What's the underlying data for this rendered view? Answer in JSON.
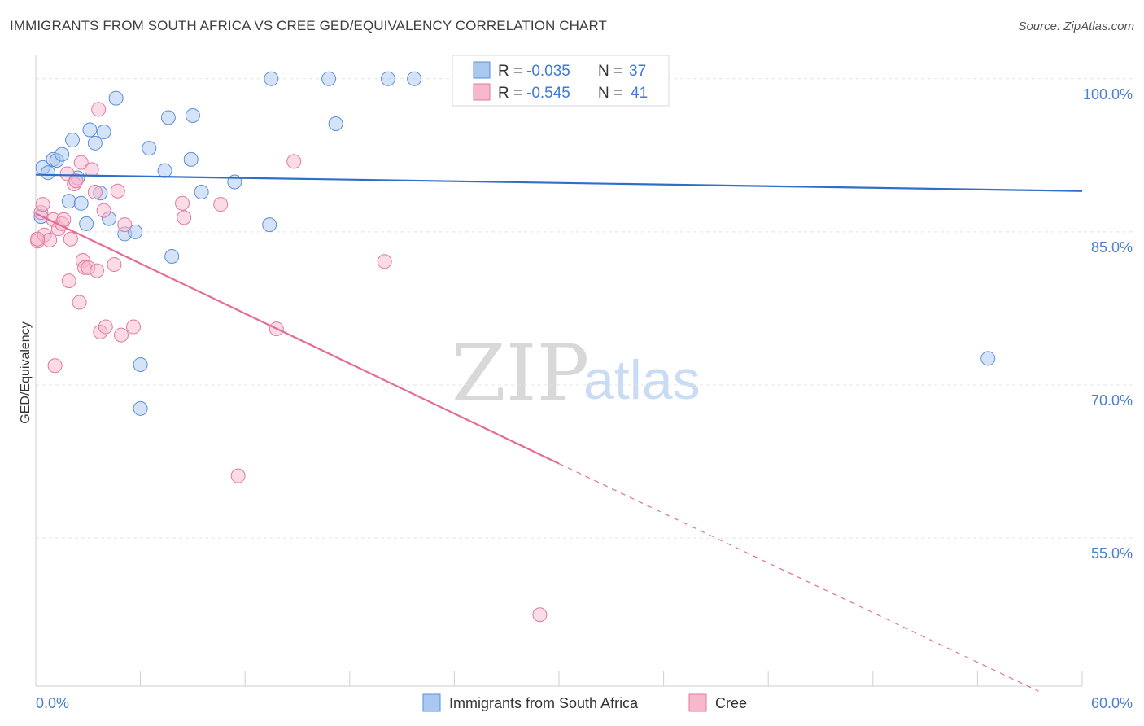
{
  "header": {
    "title": "IMMIGRANTS FROM SOUTH AFRICA VS CREE GED/EQUIVALENCY CORRELATION CHART",
    "source": "Source: ZipAtlas.com"
  },
  "watermark": {
    "zip": "ZIP",
    "atlas": "atlas"
  },
  "stats_box": {
    "rows": [
      {
        "r_label": "R = ",
        "r_value": "-0.035",
        "n_label": "N = ",
        "n_value": "37",
        "color": "#a9c8f0"
      },
      {
        "r_label": "R = ",
        "r_value": "-0.545",
        "n_label": "N = ",
        "n_value": "41",
        "color": "#f7b8cc"
      }
    ]
  },
  "legend": {
    "items": [
      {
        "label": "Immigrants from South Africa",
        "color": "#a9c8f0"
      },
      {
        "label": "Cree",
        "color": "#f7b8cc"
      }
    ]
  },
  "chart_data": {
    "type": "scatter",
    "title": "IMMIGRANTS FROM SOUTH AFRICA VS CREE GED/EQUIVALENCY CORRELATION CHART",
    "xlabel": "",
    "ylabel": "GED/Equivalency",
    "xlim": [
      0,
      60
    ],
    "ylim": [
      40.5,
      101.5
    ],
    "x_ticks": [
      0,
      60
    ],
    "x_tick_labels": [
      "0.0%",
      "60.0%"
    ],
    "y_ticks": [
      100,
      85,
      70,
      55
    ],
    "y_tick_labels": [
      "100.0%",
      "85.0%",
      "70.0%",
      "55.0%"
    ],
    "grid": true,
    "legend_position": "bottom-center",
    "series": [
      {
        "name": "Immigrants from South Africa",
        "color": "#a9c8f0",
        "stroke": "#5b8fd8",
        "trend": {
          "x": [
            0,
            60
          ],
          "y": [
            90.6,
            89.0
          ],
          "color": "#2f6fc9"
        },
        "points": [
          [
            0.3,
            86.5
          ],
          [
            0.4,
            91.3
          ],
          [
            0.7,
            90.8
          ],
          [
            1.0,
            92.1
          ],
          [
            1.2,
            92.0
          ],
          [
            1.5,
            92.6
          ],
          [
            1.9,
            88.0
          ],
          [
            2.1,
            94.0
          ],
          [
            2.4,
            90.3
          ],
          [
            2.6,
            87.8
          ],
          [
            2.9,
            85.8
          ],
          [
            3.1,
            95.0
          ],
          [
            3.4,
            93.7
          ],
          [
            3.7,
            88.8
          ],
          [
            3.9,
            94.8
          ],
          [
            4.2,
            86.3
          ],
          [
            4.6,
            98.1
          ],
          [
            5.1,
            84.8
          ],
          [
            5.7,
            85.0
          ],
          [
            6.0,
            72.0
          ],
          [
            6.0,
            67.7
          ],
          [
            6.5,
            93.2
          ],
          [
            7.4,
            91.0
          ],
          [
            7.6,
            96.2
          ],
          [
            7.8,
            82.6
          ],
          [
            8.9,
            92.1
          ],
          [
            9.0,
            96.4
          ],
          [
            9.5,
            88.9
          ],
          [
            11.4,
            89.9
          ],
          [
            13.4,
            85.7
          ],
          [
            13.5,
            100.0
          ],
          [
            16.8,
            100.0
          ],
          [
            17.2,
            95.6
          ],
          [
            20.2,
            100.0
          ],
          [
            21.7,
            100.0
          ],
          [
            34.0,
            100.0
          ],
          [
            54.6,
            72.6
          ]
        ]
      },
      {
        "name": "Cree",
        "color": "#f7b8cc",
        "stroke": "#e07aa0",
        "trend": {
          "x": [
            0,
            30
          ],
          "y": [
            86.8,
            62.3
          ],
          "color": "#e46d98"
        },
        "trend_extension": {
          "x": [
            30,
            57.5
          ],
          "y": [
            62.3,
            40.0
          ],
          "dashed": true
        },
        "points": [
          [
            0.1,
            84.1
          ],
          [
            0.3,
            86.9
          ],
          [
            0.4,
            87.7
          ],
          [
            0.5,
            84.7
          ],
          [
            0.8,
            84.2
          ],
          [
            1.0,
            86.2
          ],
          [
            1.1,
            71.9
          ],
          [
            1.3,
            85.3
          ],
          [
            1.5,
            85.8
          ],
          [
            1.6,
            86.2
          ],
          [
            1.8,
            90.7
          ],
          [
            1.9,
            80.2
          ],
          [
            2.0,
            84.3
          ],
          [
            2.2,
            89.7
          ],
          [
            2.3,
            90.0
          ],
          [
            2.5,
            78.1
          ],
          [
            2.6,
            91.8
          ],
          [
            2.7,
            82.2
          ],
          [
            2.8,
            81.5
          ],
          [
            3.0,
            81.5
          ],
          [
            3.2,
            91.1
          ],
          [
            3.4,
            88.9
          ],
          [
            3.5,
            81.2
          ],
          [
            3.6,
            97.0
          ],
          [
            3.7,
            75.2
          ],
          [
            3.9,
            87.1
          ],
          [
            4.0,
            75.7
          ],
          [
            4.5,
            81.8
          ],
          [
            4.7,
            89.0
          ],
          [
            4.9,
            74.9
          ],
          [
            5.1,
            85.7
          ],
          [
            5.6,
            75.7
          ],
          [
            8.4,
            87.8
          ],
          [
            8.5,
            86.4
          ],
          [
            10.6,
            87.7
          ],
          [
            11.6,
            61.1
          ],
          [
            13.8,
            75.5
          ],
          [
            14.8,
            91.9
          ],
          [
            20.0,
            82.1
          ],
          [
            28.9,
            47.5
          ],
          [
            0.1,
            84.3
          ]
        ]
      }
    ]
  }
}
